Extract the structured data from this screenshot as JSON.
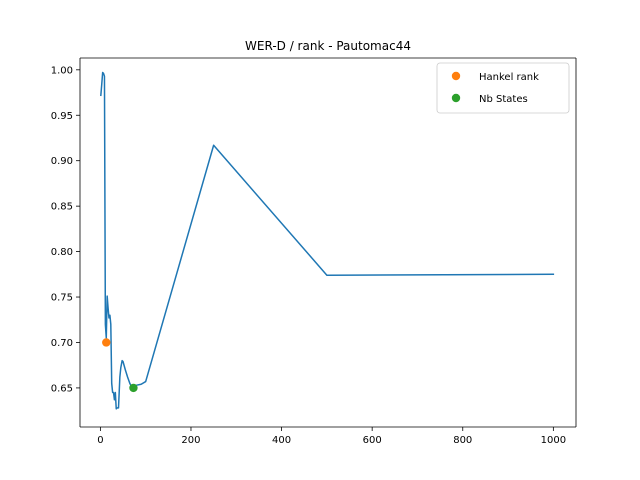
{
  "chart_data": {
    "type": "line",
    "title": "WER-D / rank - Pautomac44",
    "xlabel": "",
    "ylabel": "",
    "xlim": [
      -45,
      1050
    ],
    "ylim": [
      0.607,
      1.013
    ],
    "x_ticks": [
      0,
      200,
      400,
      600,
      800,
      1000
    ],
    "y_ticks": [
      0.65,
      0.7,
      0.75,
      0.8,
      0.85,
      0.9,
      0.95,
      1.0
    ],
    "x_tick_labels": [
      "0",
      "200",
      "400",
      "600",
      "800",
      "1000"
    ],
    "y_tick_labels": [
      "0.65",
      "0.70",
      "0.75",
      "0.80",
      "0.85",
      "0.90",
      "0.95",
      "1.00"
    ],
    "grid": false,
    "legend_position": "top-right",
    "series": [
      {
        "name": "",
        "color": "#1f77b4",
        "marker": "line",
        "x": [
          1,
          3,
          5,
          7,
          9,
          11,
          13,
          15,
          17,
          19,
          21,
          23,
          25,
          27,
          29,
          31,
          33,
          35,
          37,
          40,
          43,
          45,
          48,
          50,
          55,
          60,
          65,
          70,
          75,
          80,
          90,
          100,
          250,
          500,
          1000
        ],
        "y": [
          0.972,
          0.984,
          0.997,
          0.996,
          0.993,
          0.72,
          0.705,
          0.751,
          0.738,
          0.727,
          0.73,
          0.72,
          0.655,
          0.645,
          0.645,
          0.637,
          0.645,
          0.627,
          0.628,
          0.628,
          0.662,
          0.672,
          0.68,
          0.679,
          0.67,
          0.662,
          0.655,
          0.65,
          0.652,
          0.653,
          0.654,
          0.657,
          0.917,
          0.774,
          0.775
        ]
      },
      {
        "name": "Hankel rank",
        "color": "#ff7f0e",
        "marker": "point",
        "x": [
          13
        ],
        "y": [
          0.7
        ]
      },
      {
        "name": "Nb States",
        "color": "#2ca02c",
        "marker": "point",
        "x": [
          73
        ],
        "y": [
          0.65
        ]
      }
    ]
  }
}
